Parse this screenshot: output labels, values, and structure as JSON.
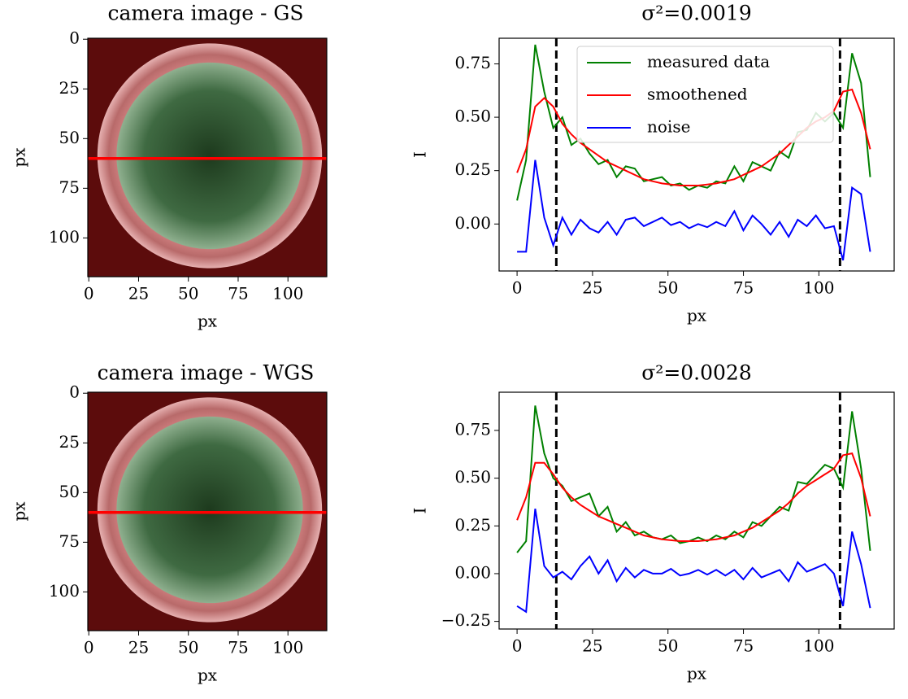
{
  "chart_data": [
    {
      "type": "image",
      "title": "camera image - GS",
      "xlabel": "px",
      "ylabel": "px",
      "xlim": [
        -0.5,
        119.5
      ],
      "ylim": [
        119.5,
        -0.5
      ],
      "xticks": [
        0,
        25,
        50,
        75,
        100
      ],
      "yticks": [
        0,
        25,
        50,
        75,
        100
      ],
      "hline": 60,
      "hline_color": "#ff0000"
    },
    {
      "type": "line",
      "title": "σ²=0.0019",
      "xlabel": "px",
      "ylabel": "I",
      "xlim": [
        -5.95,
        124.95
      ],
      "ylim": [
        -0.22,
        0.87
      ],
      "xticks": [
        0,
        25,
        50,
        75,
        100
      ],
      "yticks": [
        {
          "value": 0,
          "label": "0.00"
        },
        {
          "value": 0.25,
          "label": "0.25"
        },
        {
          "value": 0.5,
          "label": "0.50"
        },
        {
          "value": 0.75,
          "label": "0.75"
        }
      ],
      "vlines": [
        13,
        107
      ],
      "legend": "upper center",
      "x": [
        0,
        3,
        6,
        9,
        12,
        15,
        18,
        21,
        24,
        27,
        30,
        33,
        36,
        39,
        42,
        45,
        48,
        51,
        54,
        57,
        60,
        63,
        66,
        69,
        72,
        75,
        78,
        81,
        84,
        87,
        90,
        93,
        96,
        99,
        102,
        105,
        108,
        111,
        114,
        117
      ],
      "series": [
        {
          "name": "measured data",
          "color": "#008000",
          "values": [
            0.11,
            0.3,
            0.84,
            0.62,
            0.45,
            0.5,
            0.37,
            0.4,
            0.33,
            0.28,
            0.3,
            0.22,
            0.27,
            0.26,
            0.2,
            0.21,
            0.22,
            0.18,
            0.19,
            0.16,
            0.18,
            0.17,
            0.2,
            0.19,
            0.27,
            0.2,
            0.29,
            0.27,
            0.25,
            0.34,
            0.31,
            0.43,
            0.44,
            0.52,
            0.48,
            0.52,
            0.45,
            0.8,
            0.66,
            0.22
          ]
        },
        {
          "name": "smoothened",
          "color": "#ff0000",
          "values": [
            0.24,
            0.35,
            0.55,
            0.59,
            0.55,
            0.47,
            0.42,
            0.38,
            0.35,
            0.32,
            0.29,
            0.27,
            0.25,
            0.23,
            0.21,
            0.2,
            0.19,
            0.185,
            0.18,
            0.18,
            0.18,
            0.185,
            0.19,
            0.2,
            0.21,
            0.23,
            0.25,
            0.27,
            0.3,
            0.33,
            0.37,
            0.41,
            0.45,
            0.48,
            0.5,
            0.53,
            0.62,
            0.63,
            0.52,
            0.35
          ]
        },
        {
          "name": "noise",
          "color": "#0000ff",
          "values": [
            -0.13,
            -0.13,
            0.3,
            0.03,
            -0.1,
            0.03,
            -0.05,
            0.02,
            -0.02,
            -0.04,
            0.01,
            -0.05,
            0.02,
            0.03,
            -0.01,
            0.01,
            0.03,
            -0.005,
            0.01,
            -0.02,
            0.0,
            -0.015,
            0.01,
            -0.01,
            0.06,
            -0.03,
            0.04,
            0.0,
            -0.05,
            0.01,
            -0.06,
            0.02,
            -0.01,
            0.04,
            -0.02,
            -0.01,
            -0.17,
            0.17,
            0.14,
            -0.13
          ]
        }
      ]
    },
    {
      "type": "image",
      "title": "camera image - WGS",
      "xlabel": "px",
      "ylabel": "px",
      "xlim": [
        -0.5,
        119.5
      ],
      "ylim": [
        119.5,
        -0.5
      ],
      "xticks": [
        0,
        25,
        50,
        75,
        100
      ],
      "yticks": [
        0,
        25,
        50,
        75,
        100
      ],
      "hline": 60,
      "hline_color": "#ff0000"
    },
    {
      "type": "line",
      "title": "σ²=0.0028",
      "xlabel": "px",
      "ylabel": "I",
      "xlim": [
        -5.95,
        124.95
      ],
      "ylim": [
        -0.29,
        0.95
      ],
      "xticks": [
        0,
        25,
        50,
        75,
        100
      ],
      "yticks": [
        {
          "value": -0.25,
          "label": "−0.25"
        },
        {
          "value": 0,
          "label": "0.00"
        },
        {
          "value": 0.25,
          "label": "0.25"
        },
        {
          "value": 0.5,
          "label": "0.50"
        },
        {
          "value": 0.75,
          "label": "0.75"
        }
      ],
      "vlines": [
        13,
        107
      ],
      "x": [
        0,
        3,
        6,
        9,
        12,
        15,
        18,
        21,
        24,
        27,
        30,
        33,
        36,
        39,
        42,
        45,
        48,
        51,
        54,
        57,
        60,
        63,
        66,
        69,
        72,
        75,
        78,
        81,
        84,
        87,
        90,
        93,
        96,
        99,
        102,
        105,
        108,
        111,
        114,
        117
      ],
      "series": [
        {
          "color": "#008000",
          "values": [
            0.11,
            0.17,
            0.88,
            0.63,
            0.5,
            0.46,
            0.38,
            0.4,
            0.42,
            0.3,
            0.35,
            0.22,
            0.27,
            0.2,
            0.22,
            0.19,
            0.18,
            0.2,
            0.16,
            0.17,
            0.19,
            0.17,
            0.2,
            0.18,
            0.22,
            0.19,
            0.27,
            0.25,
            0.3,
            0.35,
            0.33,
            0.48,
            0.47,
            0.52,
            0.57,
            0.55,
            0.45,
            0.85,
            0.55,
            0.12
          ]
        },
        {
          "color": "#ff0000",
          "values": [
            0.28,
            0.4,
            0.58,
            0.58,
            0.52,
            0.45,
            0.4,
            0.36,
            0.33,
            0.3,
            0.28,
            0.26,
            0.24,
            0.22,
            0.2,
            0.19,
            0.18,
            0.175,
            0.17,
            0.17,
            0.17,
            0.175,
            0.18,
            0.19,
            0.2,
            0.22,
            0.24,
            0.27,
            0.3,
            0.33,
            0.37,
            0.42,
            0.46,
            0.49,
            0.52,
            0.55,
            0.62,
            0.63,
            0.5,
            0.3
          ]
        },
        {
          "color": "#0000ff",
          "values": [
            -0.17,
            -0.2,
            0.34,
            0.04,
            -0.02,
            0.01,
            -0.03,
            0.04,
            0.09,
            0.0,
            0.07,
            -0.04,
            0.03,
            -0.02,
            0.02,
            0.0,
            0.0,
            0.025,
            -0.01,
            0.0,
            0.02,
            -0.005,
            0.02,
            -0.01,
            0.02,
            -0.03,
            0.03,
            -0.02,
            0.0,
            0.02,
            -0.04,
            0.06,
            0.01,
            0.03,
            0.05,
            0.0,
            -0.17,
            0.22,
            0.05,
            -0.18
          ]
        }
      ]
    }
  ]
}
